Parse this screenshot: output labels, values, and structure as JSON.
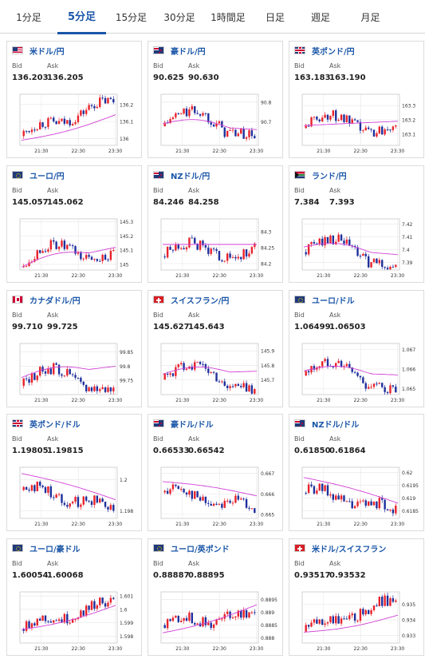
{
  "tabs": [
    {
      "label": "1分足",
      "active": false
    },
    {
      "label": "5分足",
      "active": true
    },
    {
      "label": "15分足",
      "active": false
    },
    {
      "label": "30分足",
      "active": false
    },
    {
      "label": "1時間足",
      "active": false
    },
    {
      "label": "日足",
      "active": false
    },
    {
      "label": "週足",
      "active": false
    },
    {
      "label": "月足",
      "active": false
    }
  ],
  "labels": {
    "bid": "Bid",
    "ask": "Ask"
  },
  "colors": {
    "up": "#e8222b",
    "down": "#1e2f9c",
    "ma": "#d040d6",
    "accent": "#1a56a8"
  },
  "cards": [
    {
      "pair": "米ドル/円",
      "flag": "us",
      "bid": "136.203",
      "ask": "136.205",
      "chart_data": {
        "type": "candlestick",
        "x_ticks": [
          "21:30",
          "22:30",
          "23:30"
        ],
        "y_ticks": [
          136,
          136.1,
          136.2
        ],
        "ylim": [
          135.96,
          136.26
        ],
        "start": 136.03,
        "end": 136.22,
        "ma_start": 135.99,
        "ma_end": 136.14,
        "shape": "rise"
      }
    },
    {
      "pair": "豪ドル/円",
      "flag": "au",
      "bid": "90.625",
      "ask": "90.630",
      "chart_data": {
        "type": "candlestick",
        "x_ticks": [
          "21:30",
          "22:30",
          "23:30"
        ],
        "y_ticks": [
          90.7,
          90.8
        ],
        "ylim": [
          90.58,
          90.84
        ],
        "start": 90.69,
        "end": 90.63,
        "ma_start": 90.69,
        "ma_end": 90.66,
        "shape": "hump"
      }
    },
    {
      "pair": "英ポンド/円",
      "flag": "gb",
      "bid": "163.183",
      "ask": "163.190",
      "chart_data": {
        "type": "candlestick",
        "x_ticks": [
          "21:30",
          "22:30",
          "23:30"
        ],
        "y_ticks": [
          163.1,
          163.2,
          163.3
        ],
        "ylim": [
          163.02,
          163.38
        ],
        "start": 163.16,
        "end": 163.19,
        "ma_start": 163.16,
        "ma_end": 163.19,
        "shape": "wave"
      }
    },
    {
      "pair": "ユーロ/円",
      "flag": "eu",
      "bid": "145.057",
      "ask": "145.062",
      "chart_data": {
        "type": "candlestick",
        "x_ticks": [
          "21:30",
          "22:30",
          "23:30"
        ],
        "y_ticks": [
          145,
          145.1,
          145.2,
          145.3
        ],
        "ylim": [
          144.96,
          145.32
        ],
        "start": 145.0,
        "end": 145.06,
        "ma_start": 144.98,
        "ma_end": 145.12,
        "shape": "hump"
      }
    },
    {
      "pair": "NZドル/円",
      "flag": "nz",
      "bid": "84.246",
      "ask": "84.258",
      "chart_data": {
        "type": "candlestick",
        "x_ticks": [
          "21:30",
          "22:30",
          "23:30"
        ],
        "y_ticks": [
          84.2,
          84.25,
          84.3
        ],
        "ylim": [
          84.18,
          84.34
        ],
        "start": 84.23,
        "end": 84.25,
        "ma_start": 84.26,
        "ma_end": 84.26,
        "shape": "wave"
      }
    },
    {
      "pair": "ランド/円",
      "flag": "za",
      "bid": "7.384",
      "ask": "7.393",
      "chart_data": {
        "type": "candlestick",
        "x_ticks": [
          "21:30",
          "22:30",
          "23:30"
        ],
        "y_ticks": [
          7.39,
          7.4,
          7.41,
          7.42
        ],
        "ylim": [
          7.384,
          7.424
        ],
        "start": 7.4,
        "end": 7.386,
        "ma_start": 7.402,
        "ma_end": 7.396,
        "shape": "hump"
      }
    },
    {
      "pair": "カナダドル/円",
      "flag": "ca",
      "bid": "99.710",
      "ask": "99.725",
      "chart_data": {
        "type": "candlestick",
        "x_ticks": [
          "21:30",
          "22:30",
          "23:30"
        ],
        "y_ticks": [
          99.75,
          99.8,
          99.85
        ],
        "ylim": [
          99.7,
          99.88
        ],
        "start": 99.74,
        "end": 99.72,
        "ma_start": 99.76,
        "ma_end": 99.8,
        "shape": "hump"
      }
    },
    {
      "pair": "スイスフラン/円",
      "flag": "ch",
      "bid": "145.627",
      "ask": "145.643",
      "chart_data": {
        "type": "candlestick",
        "x_ticks": [
          "21:30",
          "22:30",
          "23:30"
        ],
        "y_ticks": [
          145.7,
          145.8,
          145.9
        ],
        "ylim": [
          145.6,
          145.95
        ],
        "start": 145.72,
        "end": 145.64,
        "ma_start": 145.74,
        "ma_end": 145.76,
        "shape": "hump"
      }
    },
    {
      "pair": "ユーロ/ドル",
      "flag": "eu",
      "bid": "1.06499",
      "ask": "1.06503",
      "chart_data": {
        "type": "candlestick",
        "x_ticks": [
          "21:30",
          "22:30",
          "23:30"
        ],
        "y_ticks": [
          1.065,
          1.066,
          1.067
        ],
        "ylim": [
          1.0647,
          1.0673
        ],
        "start": 1.0658,
        "end": 1.0649,
        "ma_start": 1.0659,
        "ma_end": 1.0657,
        "shape": "hump"
      }
    },
    {
      "pair": "英ポンド/ドル",
      "flag": "gb",
      "bid": "1.19805",
      "ask": "1.19815",
      "chart_data": {
        "type": "candlestick",
        "x_ticks": [
          "21:30",
          "22:30",
          "23:30"
        ],
        "y_ticks": [
          1.198,
          1.2
        ],
        "ylim": [
          1.1975,
          1.2008
        ],
        "start": 1.1995,
        "end": 1.1982,
        "ma_start": 1.2004,
        "ma_end": 1.1987,
        "shape": "fall"
      }
    },
    {
      "pair": "豪ドル/ドル",
      "flag": "au",
      "bid": "0.66533",
      "ask": "0.66542",
      "chart_data": {
        "type": "candlestick",
        "x_ticks": [
          "21:30",
          "22:30",
          "23:30"
        ],
        "y_ticks": [
          0.665,
          0.666,
          0.667
        ],
        "ylim": [
          0.6648,
          0.6673
        ],
        "start": 0.6662,
        "end": 0.6653,
        "ma_start": 0.6666,
        "ma_end": 0.6659,
        "shape": "fall"
      }
    },
    {
      "pair": "NZドル/ドル",
      "flag": "nz",
      "bid": "0.61850",
      "ask": "0.61864",
      "chart_data": {
        "type": "candlestick",
        "x_ticks": [
          "21:30",
          "22:30",
          "23:30"
        ],
        "y_ticks": [
          0.6185,
          0.619,
          0.6195,
          0.62
        ],
        "ylim": [
          0.6182,
          0.6202
        ],
        "start": 0.6193,
        "end": 0.6185,
        "ma_start": 0.6198,
        "ma_end": 0.6188,
        "shape": "fall"
      }
    },
    {
      "pair": "ユーロ/豪ドル",
      "flag": "eu",
      "bid": "1.60054",
      "ask": "1.60068",
      "chart_data": {
        "type": "candlestick",
        "x_ticks": [
          "21:30",
          "22:30",
          "23:30"
        ],
        "y_ticks": [
          1.598,
          1.599,
          1.6,
          1.601
        ],
        "ylim": [
          1.5975,
          1.6013
        ],
        "start": 1.5987,
        "end": 1.6005,
        "ma_start": 1.5985,
        "ma_end": 1.6003,
        "shape": "rise"
      }
    },
    {
      "pair": "ユーロ/英ポンド",
      "flag": "eu",
      "bid": "0.88887",
      "ask": "0.88895",
      "chart_data": {
        "type": "candlestick",
        "x_ticks": [
          "21:30",
          "22:30",
          "23:30"
        ],
        "y_ticks": [
          0.888,
          0.8885,
          0.889,
          0.8895
        ],
        "ylim": [
          0.8878,
          0.8898
        ],
        "start": 0.8886,
        "end": 0.8889,
        "ma_start": 0.8882,
        "ma_end": 0.8893,
        "shape": "rise"
      }
    },
    {
      "pair": "米ドル/スイスフラン",
      "flag": "ch",
      "bid": "0.93517",
      "ask": "0.93532",
      "chart_data": {
        "type": "candlestick",
        "x_ticks": [
          "21:30",
          "22:30",
          "23:30"
        ],
        "y_ticks": [
          0.933,
          0.934,
          0.935
        ],
        "ylim": [
          0.9325,
          0.9358
        ],
        "start": 0.9334,
        "end": 0.9352,
        "ma_start": 0.9332,
        "ma_end": 0.9343,
        "shape": "rise"
      }
    }
  ]
}
